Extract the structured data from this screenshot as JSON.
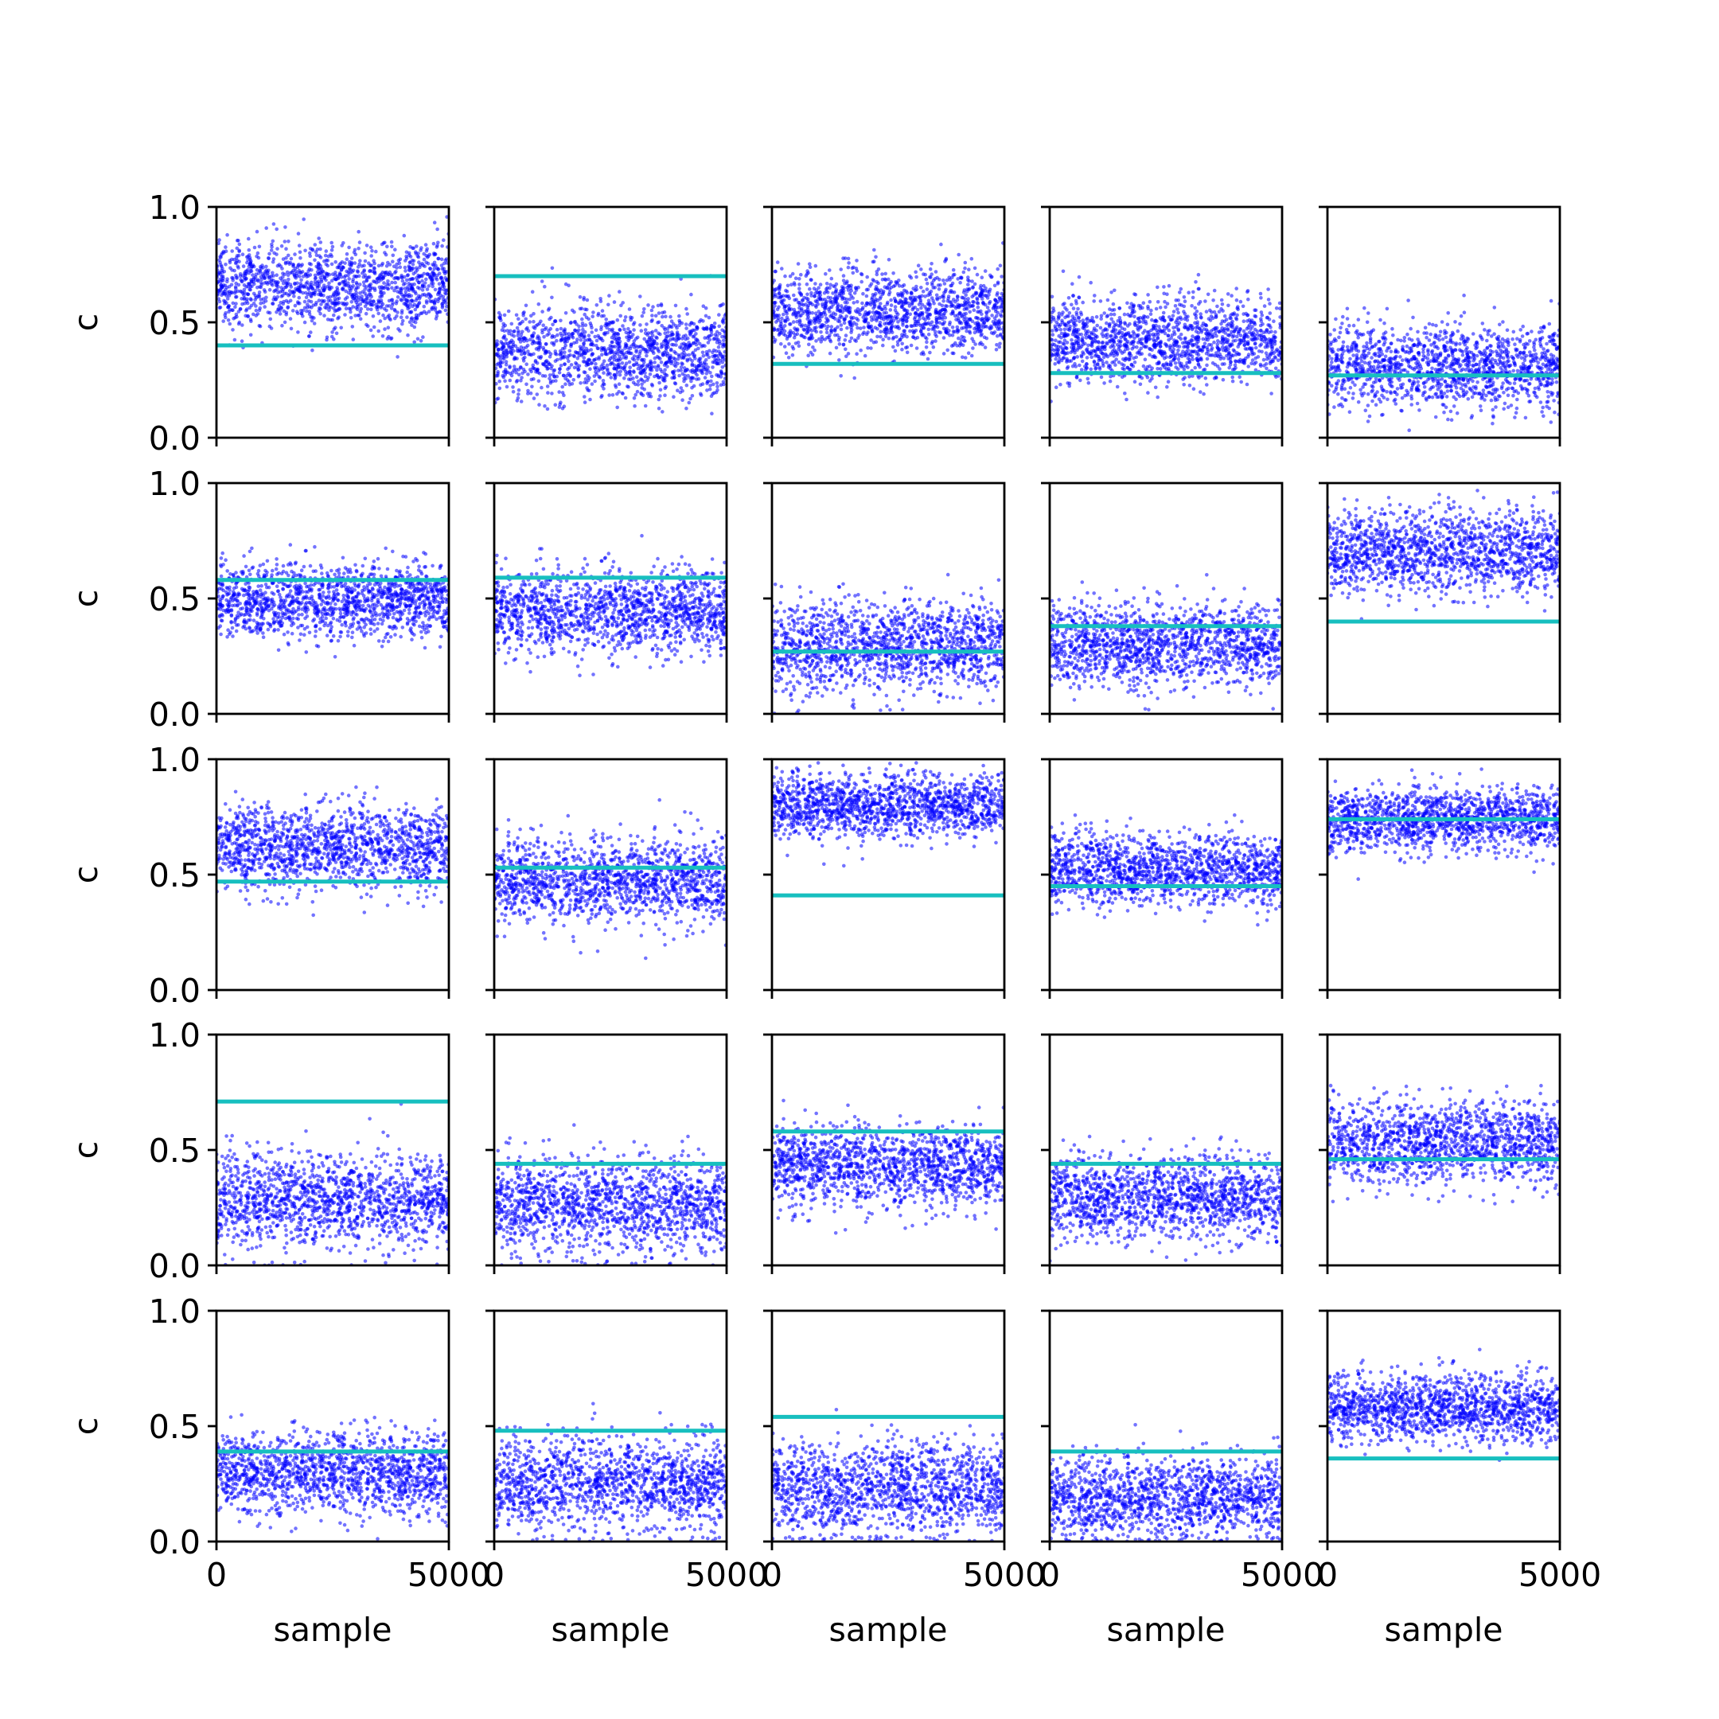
{
  "chart_data": {
    "type": "scatter",
    "grid": false,
    "rows": 5,
    "cols": 5,
    "shared_axes": {
      "xlim": [
        0,
        5000
      ],
      "ylim": [
        0,
        1
      ]
    },
    "xlabel": "sample",
    "ylabel": "c",
    "x_ticks": [
      "0",
      "5000"
    ],
    "y_ticks": [
      "0.0",
      "0.5",
      "1.0"
    ],
    "colors": {
      "points": "#0000ff",
      "reference_line": "#17bfbf"
    },
    "n_samples": 5000,
    "panels": [
      {
        "row": 0,
        "col": 0,
        "reference": 0.4,
        "sample_mean": 0.66,
        "sample_sd": 0.095
      },
      {
        "row": 0,
        "col": 1,
        "reference": 0.7,
        "sample_mean": 0.37,
        "sample_sd": 0.1
      },
      {
        "row": 0,
        "col": 2,
        "reference": 0.32,
        "sample_mean": 0.55,
        "sample_sd": 0.09
      },
      {
        "row": 0,
        "col": 3,
        "reference": 0.28,
        "sample_mean": 0.42,
        "sample_sd": 0.09
      },
      {
        "row": 0,
        "col": 4,
        "reference": 0.27,
        "sample_mean": 0.31,
        "sample_sd": 0.09
      },
      {
        "row": 1,
        "col": 0,
        "reference": 0.58,
        "sample_mean": 0.49,
        "sample_sd": 0.08
      },
      {
        "row": 1,
        "col": 1,
        "reference": 0.59,
        "sample_mean": 0.44,
        "sample_sd": 0.09
      },
      {
        "row": 1,
        "col": 2,
        "reference": 0.27,
        "sample_mean": 0.29,
        "sample_sd": 0.1
      },
      {
        "row": 1,
        "col": 3,
        "reference": 0.38,
        "sample_mean": 0.3,
        "sample_sd": 0.09
      },
      {
        "row": 1,
        "col": 4,
        "reference": 0.4,
        "sample_mean": 0.7,
        "sample_sd": 0.09
      },
      {
        "row": 2,
        "col": 0,
        "reference": 0.47,
        "sample_mean": 0.62,
        "sample_sd": 0.09
      },
      {
        "row": 2,
        "col": 1,
        "reference": 0.53,
        "sample_mean": 0.47,
        "sample_sd": 0.09
      },
      {
        "row": 2,
        "col": 2,
        "reference": 0.41,
        "sample_mean": 0.8,
        "sample_sd": 0.07
      },
      {
        "row": 2,
        "col": 3,
        "reference": 0.45,
        "sample_mean": 0.52,
        "sample_sd": 0.08
      },
      {
        "row": 2,
        "col": 4,
        "reference": 0.74,
        "sample_mean": 0.74,
        "sample_sd": 0.07
      },
      {
        "row": 3,
        "col": 0,
        "reference": 0.71,
        "sample_mean": 0.28,
        "sample_sd": 0.1
      },
      {
        "row": 3,
        "col": 1,
        "reference": 0.44,
        "sample_mean": 0.26,
        "sample_sd": 0.1
      },
      {
        "row": 3,
        "col": 2,
        "reference": 0.58,
        "sample_mean": 0.43,
        "sample_sd": 0.09
      },
      {
        "row": 3,
        "col": 3,
        "reference": 0.44,
        "sample_mean": 0.29,
        "sample_sd": 0.09
      },
      {
        "row": 3,
        "col": 4,
        "reference": 0.46,
        "sample_mean": 0.53,
        "sample_sd": 0.09
      },
      {
        "row": 4,
        "col": 0,
        "reference": 0.39,
        "sample_mean": 0.3,
        "sample_sd": 0.09
      },
      {
        "row": 4,
        "col": 1,
        "reference": 0.48,
        "sample_mean": 0.25,
        "sample_sd": 0.1
      },
      {
        "row": 4,
        "col": 2,
        "reference": 0.54,
        "sample_mean": 0.23,
        "sample_sd": 0.1
      },
      {
        "row": 4,
        "col": 3,
        "reference": 0.39,
        "sample_mean": 0.19,
        "sample_sd": 0.09
      },
      {
        "row": 4,
        "col": 4,
        "reference": 0.36,
        "sample_mean": 0.58,
        "sample_sd": 0.07
      }
    ]
  }
}
